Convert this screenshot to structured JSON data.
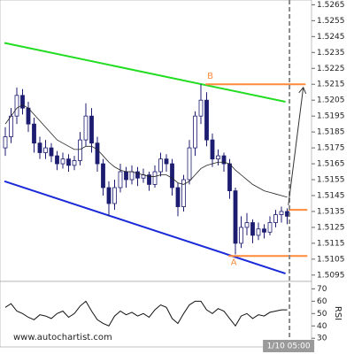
{
  "chart_data": {
    "type": "candlestick",
    "ylim": [
      1.5091,
      1.5268
    ],
    "yticks": [
      1.5095,
      1.5105,
      1.5115,
      1.5125,
      1.5135,
      1.5145,
      1.5155,
      1.5165,
      1.5175,
      1.5185,
      1.5195,
      1.5205,
      1.5215,
      1.5225,
      1.5235,
      1.5245,
      1.5255,
      1.5265
    ],
    "candle_colors": {
      "up": "#ffffff",
      "down": "#1c1c70",
      "outline": "#1c1c70"
    },
    "ohlc": [
      [
        1.5175,
        1.5188,
        1.517,
        1.5182
      ],
      [
        1.5182,
        1.52,
        1.5178,
        1.5195
      ],
      [
        1.5195,
        1.5213,
        1.519,
        1.5208
      ],
      [
        1.5208,
        1.5212,
        1.5196,
        1.52
      ],
      [
        1.52,
        1.5204,
        1.5185,
        1.519
      ],
      [
        1.519,
        1.5194,
        1.5172,
        1.5178
      ],
      [
        1.5178,
        1.5182,
        1.5168,
        1.5172
      ],
      [
        1.5172,
        1.518,
        1.5168,
        1.5175
      ],
      [
        1.5175,
        1.5178,
        1.5166,
        1.517
      ],
      [
        1.517,
        1.5173,
        1.5161,
        1.5165
      ],
      [
        1.5165,
        1.5172,
        1.5162,
        1.5168
      ],
      [
        1.5168,
        1.5171,
        1.516,
        1.5164
      ],
      [
        1.5164,
        1.517,
        1.5161,
        1.5167
      ],
      [
        1.5167,
        1.5185,
        1.5164,
        1.518
      ],
      [
        1.518,
        1.5203,
        1.5176,
        1.5195
      ],
      [
        1.5195,
        1.52,
        1.5172,
        1.5178
      ],
      [
        1.5178,
        1.5182,
        1.516,
        1.5165
      ],
      [
        1.5165,
        1.5168,
        1.5145,
        1.515
      ],
      [
        1.515,
        1.5154,
        1.5132,
        1.514
      ],
      [
        1.514,
        1.5155,
        1.5136,
        1.515
      ],
      [
        1.515,
        1.5165,
        1.5147,
        1.516
      ],
      [
        1.516,
        1.5163,
        1.515,
        1.5155
      ],
      [
        1.5155,
        1.5164,
        1.5152,
        1.516
      ],
      [
        1.516,
        1.5163,
        1.5151,
        1.5156
      ],
      [
        1.5156,
        1.5162,
        1.5153,
        1.5158
      ],
      [
        1.5158,
        1.516,
        1.5148,
        1.5152
      ],
      [
        1.5152,
        1.5164,
        1.515,
        1.516
      ],
      [
        1.516,
        1.5172,
        1.5157,
        1.5168
      ],
      [
        1.5168,
        1.5171,
        1.516,
        1.5165
      ],
      [
        1.5165,
        1.5168,
        1.5145,
        1.515
      ],
      [
        1.515,
        1.5153,
        1.5132,
        1.5138
      ],
      [
        1.5138,
        1.5158,
        1.5135,
        1.5155
      ],
      [
        1.5155,
        1.518,
        1.5152,
        1.5175
      ],
      [
        1.5175,
        1.5198,
        1.517,
        1.5195
      ],
      [
        1.5195,
        1.5215,
        1.519,
        1.5205
      ],
      [
        1.5205,
        1.521,
        1.5176,
        1.518
      ],
      [
        1.518,
        1.5184,
        1.5163,
        1.5168
      ],
      [
        1.5168,
        1.5174,
        1.5164,
        1.517
      ],
      [
        1.517,
        1.5172,
        1.516,
        1.5165
      ],
      [
        1.5165,
        1.5168,
        1.5143,
        1.5148
      ],
      [
        1.5148,
        1.515,
        1.5108,
        1.5115
      ],
      [
        1.5115,
        1.5132,
        1.5112,
        1.5125
      ],
      [
        1.5125,
        1.5134,
        1.512,
        1.5128
      ],
      [
        1.5128,
        1.513,
        1.5115,
        1.512
      ],
      [
        1.512,
        1.5128,
        1.5117,
        1.5124
      ],
      [
        1.5124,
        1.5127,
        1.5118,
        1.5122
      ],
      [
        1.5122,
        1.5132,
        1.512,
        1.5128
      ],
      [
        1.5128,
        1.5136,
        1.5125,
        1.5133
      ],
      [
        1.5133,
        1.5138,
        1.5128,
        1.5135
      ],
      [
        1.5135,
        1.5137,
        1.5127,
        1.5132
      ]
    ],
    "moving_average": {
      "color": "#222222",
      "values": [
        1.519,
        1.5195,
        1.52,
        1.5202,
        1.52,
        1.5196,
        1.5192,
        1.5188,
        1.5184,
        1.518,
        1.5178,
        1.5176,
        1.5174,
        1.5174,
        1.5176,
        1.5176,
        1.5174,
        1.517,
        1.5166,
        1.5163,
        1.5161,
        1.516,
        1.516,
        1.5159,
        1.5158,
        1.5157,
        1.5157,
        1.5158,
        1.5158,
        1.5156,
        1.5153,
        1.5152,
        1.5154,
        1.5158,
        1.5162,
        1.5164,
        1.5165,
        1.5166,
        1.5166,
        1.5165,
        1.5161,
        1.5158,
        1.5155,
        1.5152,
        1.515,
        1.5148,
        1.5147,
        1.5146,
        1.5145,
        1.5144
      ]
    },
    "trendlines": [
      {
        "from": [
          -0.15,
          1.5241
        ],
        "to": [
          48.7,
          1.5204
        ],
        "color": "#22dd22"
      },
      {
        "from": [
          -0.15,
          1.5154
        ],
        "to": [
          48.7,
          1.5096
        ],
        "color": "#1a2ad8"
      }
    ],
    "levels": [
      {
        "price": 1.5215,
        "from": 34.8,
        "to": 52.2,
        "color": "#ff8a3a"
      },
      {
        "price": 1.5107,
        "from": 38.8,
        "to": 52.5,
        "color": "#ff8a3a"
      },
      {
        "price": 1.5136,
        "from": 49.2,
        "to": 52.5,
        "color": "#ff8a3a"
      }
    ],
    "projection": {
      "from": [
        49.2,
        1.5139
      ],
      "to": [
        51.8,
        1.5213
      ],
      "color": "#333333"
    },
    "annotations": [
      {
        "text": "B",
        "index": 35.1,
        "price": 1.522
      },
      {
        "text": "A",
        "index": 39.2,
        "price": 1.5103
      }
    ],
    "time_marker": {
      "index": 49.4,
      "label": "1/10 05:00"
    },
    "rsi": {
      "label": "RSI",
      "ylim": [
        23,
        76
      ],
      "yticks": [
        30,
        40,
        50,
        60,
        70
      ],
      "color": "#111111",
      "values": [
        55,
        58,
        52,
        50,
        47,
        45,
        49,
        48,
        46,
        50,
        52,
        47,
        50,
        56,
        60,
        52,
        45,
        42,
        40,
        48,
        52,
        49,
        51,
        48,
        50,
        47,
        53,
        57,
        55,
        46,
        42,
        50,
        57,
        60,
        60,
        53,
        50,
        54,
        52,
        46,
        40,
        48,
        50,
        46,
        49,
        48,
        51,
        52,
        53,
        53
      ]
    },
    "watermark": "www.autochartist.com"
  }
}
